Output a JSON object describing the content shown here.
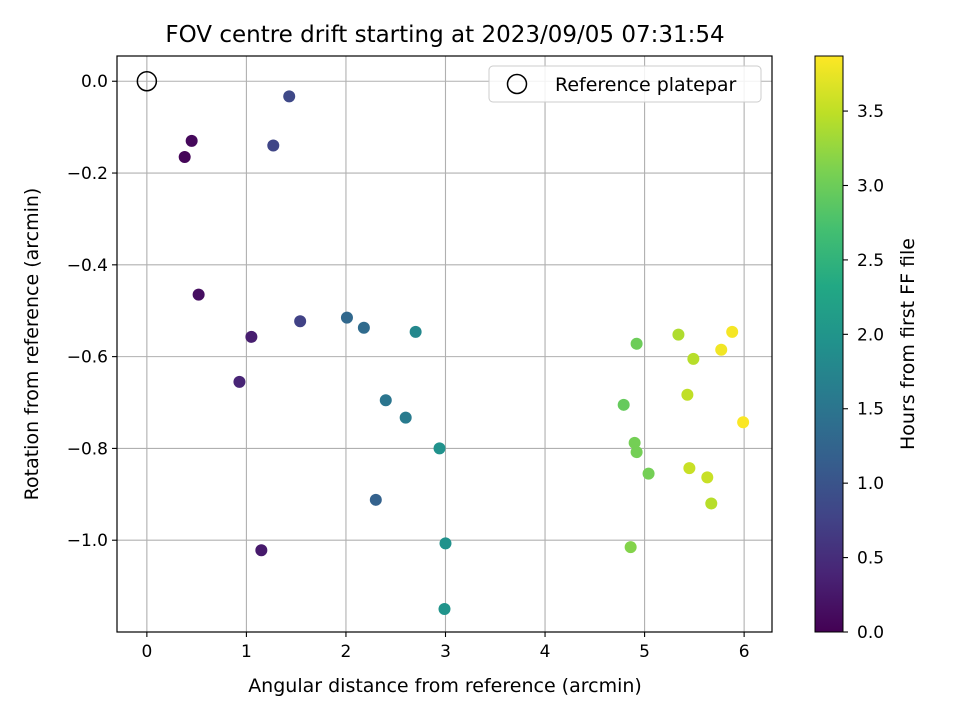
{
  "chart_data": {
    "type": "scatter",
    "title": "FOV centre drift starting at 2023/09/05 07:31:54",
    "xlabel": "Angular distance from reference (arcmin)",
    "ylabel": "Rotation from reference (arcmin)",
    "xlim": [
      -0.3,
      6.28
    ],
    "ylim": [
      -1.2,
      0.055
    ],
    "grid": true,
    "xticks": [
      "0",
      "1",
      "2",
      "3",
      "4",
      "5",
      "6"
    ],
    "yticks": [
      "0.0",
      "−0.2",
      "−0.4",
      "−0.6",
      "−0.8",
      "−1.0"
    ],
    "legend": {
      "position": "top-right",
      "label": "Reference platepar"
    },
    "reference_point": {
      "x": 0,
      "y": 0
    },
    "colorbar": {
      "label": "Hours from first FF file",
      "colormap": "viridis",
      "range": [
        0,
        3.87
      ],
      "ticks": [
        "0.0",
        "0.5",
        "1.0",
        "1.5",
        "2.0",
        "2.5",
        "3.0",
        "3.5"
      ]
    },
    "points": [
      {
        "x": 0.38,
        "y": -0.165,
        "t": 0.05
      },
      {
        "x": 0.45,
        "y": -0.13,
        "t": 0.08
      },
      {
        "x": 0.52,
        "y": -0.465,
        "t": 0.15
      },
      {
        "x": 1.15,
        "y": -1.022,
        "t": 0.28
      },
      {
        "x": 1.05,
        "y": -0.557,
        "t": 0.32
      },
      {
        "x": 0.93,
        "y": -0.655,
        "t": 0.4
      },
      {
        "x": 1.54,
        "y": -0.523,
        "t": 0.75
      },
      {
        "x": 1.27,
        "y": -0.14,
        "t": 0.8
      },
      {
        "x": 1.43,
        "y": -0.033,
        "t": 0.85
      },
      {
        "x": 2.3,
        "y": -0.912,
        "t": 1.2
      },
      {
        "x": 2.01,
        "y": -0.515,
        "t": 1.3
      },
      {
        "x": 2.18,
        "y": -0.537,
        "t": 1.35
      },
      {
        "x": 2.4,
        "y": -0.695,
        "t": 1.5
      },
      {
        "x": 2.6,
        "y": -0.733,
        "t": 1.6
      },
      {
        "x": 2.7,
        "y": -0.546,
        "t": 1.8
      },
      {
        "x": 2.94,
        "y": -0.8,
        "t": 1.95
      },
      {
        "x": 3.0,
        "y": -1.007,
        "t": 1.95
      },
      {
        "x": 2.99,
        "y": -1.15,
        "t": 1.98
      },
      {
        "x": 4.79,
        "y": -0.705,
        "t": 2.95
      },
      {
        "x": 4.92,
        "y": -0.572,
        "t": 3.0
      },
      {
        "x": 4.9,
        "y": -0.788,
        "t": 3.05
      },
      {
        "x": 4.92,
        "y": -0.808,
        "t": 3.05
      },
      {
        "x": 5.04,
        "y": -0.855,
        "t": 3.05
      },
      {
        "x": 4.86,
        "y": -1.015,
        "t": 3.15
      },
      {
        "x": 5.34,
        "y": -0.552,
        "t": 3.4
      },
      {
        "x": 5.49,
        "y": -0.605,
        "t": 3.45
      },
      {
        "x": 5.43,
        "y": -0.683,
        "t": 3.5
      },
      {
        "x": 5.45,
        "y": -0.843,
        "t": 3.55
      },
      {
        "x": 5.63,
        "y": -0.863,
        "t": 3.55
      },
      {
        "x": 5.67,
        "y": -0.92,
        "t": 3.45
      },
      {
        "x": 5.77,
        "y": -0.585,
        "t": 3.8
      },
      {
        "x": 5.88,
        "y": -0.546,
        "t": 3.82
      },
      {
        "x": 5.99,
        "y": -0.743,
        "t": 3.85
      }
    ]
  }
}
